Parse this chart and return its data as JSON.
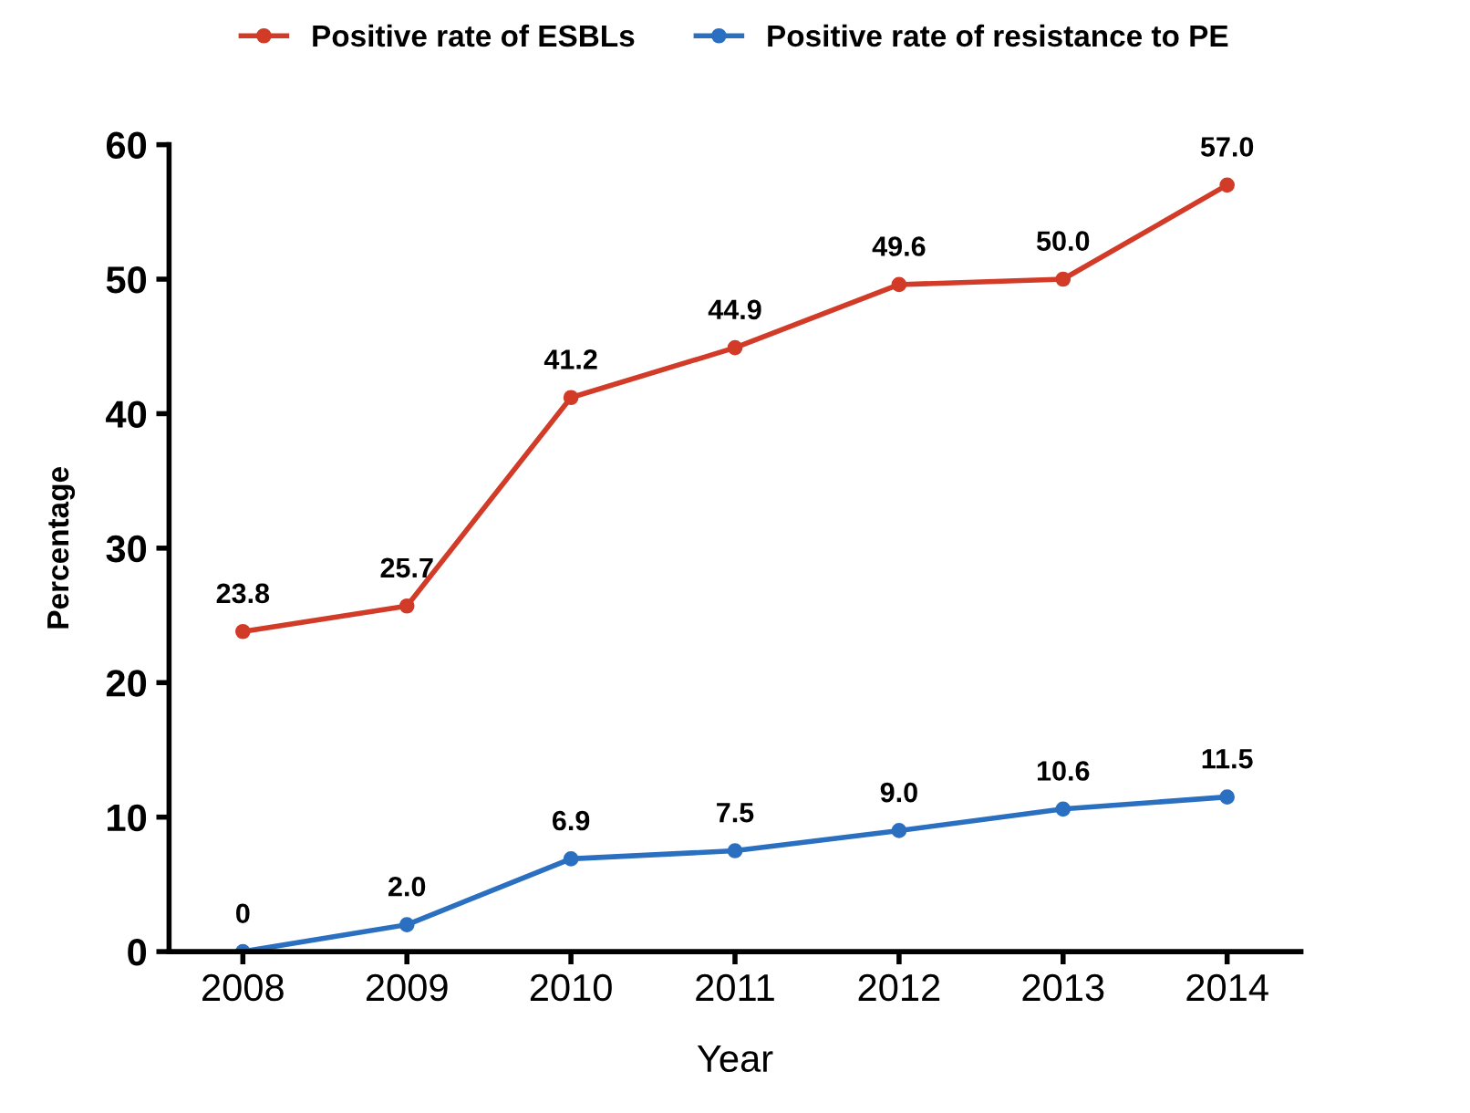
{
  "chart_data": {
    "type": "line",
    "xlabel": "Year",
    "ylabel": "Percentage",
    "categories": [
      "2008",
      "2009",
      "2010",
      "2011",
      "2012",
      "2013",
      "2014"
    ],
    "series": [
      {
        "name": "Positive rate of ESBLs",
        "color": "#d13b27",
        "values": [
          23.8,
          25.7,
          41.2,
          44.9,
          49.6,
          50.0,
          57.0
        ],
        "value_labels": [
          "23.8",
          "25.7",
          "41.2",
          "44.9",
          "49.6",
          "50.0",
          "57.0"
        ]
      },
      {
        "name": "Positive rate of resistance to PE",
        "color": "#2a6fc0",
        "values": [
          0,
          2.0,
          6.9,
          7.5,
          9.0,
          10.6,
          11.5
        ],
        "value_labels": [
          "0",
          "2.0",
          "6.9",
          "7.5",
          "9.0",
          "10.6",
          "11.5"
        ]
      }
    ],
    "ylim": [
      0,
      60
    ],
    "yticks": [
      0,
      10,
      20,
      30,
      40,
      50,
      60
    ],
    "grid": false,
    "legend": "top",
    "marker": "circle",
    "line_style": "solid"
  }
}
